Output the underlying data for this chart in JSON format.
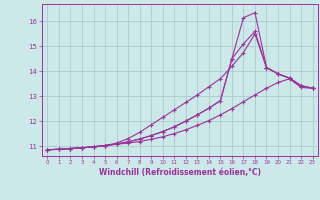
{
  "xlabel": "Windchill (Refroidissement éolien,°C)",
  "background_color": "#cce8e8",
  "grid_color": "#aacccc",
  "line_color": "#993399",
  "xlim": [
    -0.5,
    23.5
  ],
  "ylim": [
    10.6,
    16.7
  ],
  "yticks": [
    11,
    12,
    13,
    14,
    15,
    16
  ],
  "xticks": [
    0,
    1,
    2,
    3,
    4,
    5,
    6,
    7,
    8,
    9,
    10,
    11,
    12,
    13,
    14,
    15,
    16,
    17,
    18,
    19,
    20,
    21,
    22,
    23
  ],
  "line1_x": [
    0,
    1,
    2,
    3,
    4,
    5,
    6,
    7,
    8,
    9,
    10,
    11,
    12,
    13,
    14,
    15,
    16,
    17,
    18,
    19,
    20,
    21,
    22,
    23
  ],
  "line1_y": [
    10.85,
    10.87,
    10.9,
    10.93,
    10.97,
    11.02,
    11.08,
    11.17,
    11.28,
    11.42,
    11.58,
    11.77,
    12.0,
    12.25,
    12.52,
    12.82,
    14.5,
    16.15,
    16.35,
    14.15,
    13.9,
    13.72,
    13.42,
    13.32
  ],
  "line2_x": [
    0,
    1,
    2,
    3,
    4,
    5,
    6,
    7,
    8,
    9,
    10,
    11,
    12,
    13,
    14,
    15,
    16,
    17,
    18,
    19,
    20,
    21,
    22,
    23
  ],
  "line2_y": [
    10.85,
    10.87,
    10.9,
    10.93,
    10.97,
    11.02,
    11.08,
    11.17,
    11.28,
    11.42,
    11.58,
    11.77,
    12.0,
    12.25,
    12.52,
    12.82,
    14.5,
    15.1,
    15.6,
    14.15,
    13.9,
    13.72,
    13.42,
    13.32
  ],
  "line3_x": [
    0,
    1,
    2,
    3,
    4,
    5,
    6,
    7,
    8,
    9,
    10,
    11,
    12,
    13,
    14,
    15,
    16,
    17,
    18,
    19,
    20,
    21,
    22,
    23
  ],
  "line3_y": [
    10.85,
    10.87,
    10.9,
    10.93,
    10.97,
    11.02,
    11.12,
    11.3,
    11.55,
    11.85,
    12.15,
    12.45,
    12.75,
    13.05,
    13.38,
    13.7,
    14.2,
    14.75,
    15.5,
    14.15,
    13.9,
    13.72,
    13.42,
    13.32
  ],
  "line4_x": [
    0,
    1,
    2,
    3,
    4,
    5,
    6,
    7,
    8,
    9,
    10,
    11,
    12,
    13,
    14,
    15,
    16,
    17,
    18,
    19,
    20,
    21,
    22,
    23
  ],
  "line4_y": [
    10.85,
    10.87,
    10.9,
    10.93,
    10.97,
    11.02,
    11.07,
    11.12,
    11.18,
    11.27,
    11.37,
    11.5,
    11.65,
    11.83,
    12.02,
    12.25,
    12.5,
    12.78,
    13.05,
    13.32,
    13.55,
    13.7,
    13.35,
    13.32
  ]
}
